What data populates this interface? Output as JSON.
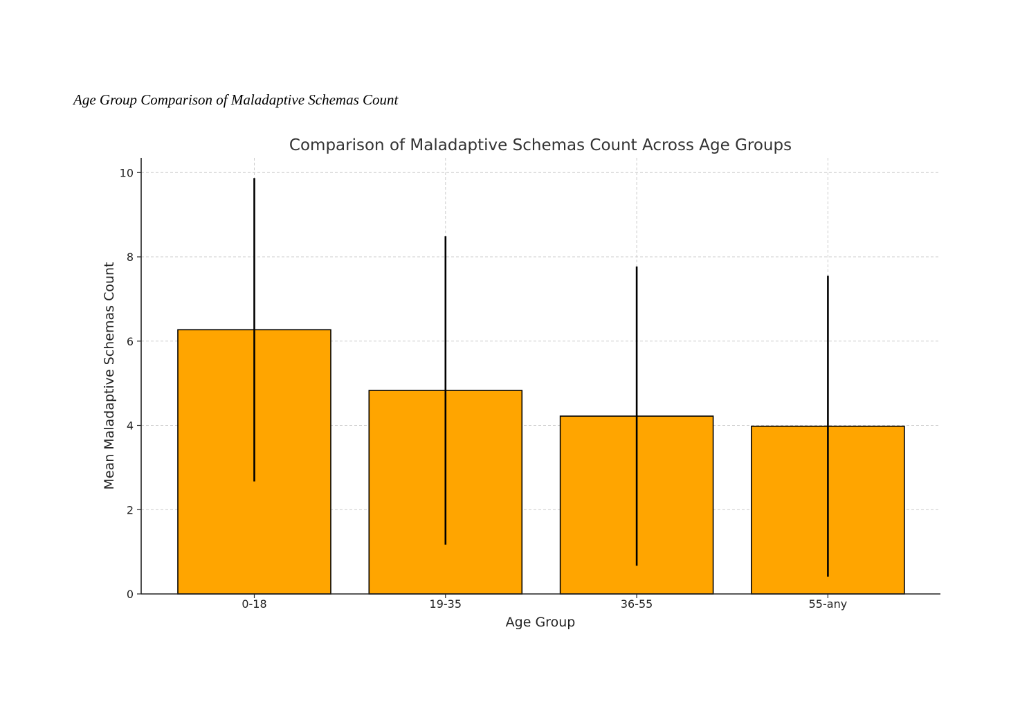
{
  "caption": "Age Group Comparison of Maladaptive Schemas Count",
  "chart_data": {
    "type": "bar",
    "title": "Comparison of Maladaptive Schemas Count Across Age Groups",
    "xlabel": "Age Group",
    "ylabel": "Mean Maladaptive Schemas Count",
    "categories": [
      "0-18",
      "19-35",
      "36-55",
      "55-any"
    ],
    "values": [
      6.27,
      4.83,
      4.22,
      3.98
    ],
    "error_bars": [
      3.6,
      3.66,
      3.55,
      3.57
    ],
    "ylim": [
      0,
      10.35
    ],
    "yticks": [
      0,
      2,
      4,
      6,
      8,
      10
    ],
    "grid": true,
    "colors": {
      "bar_fill": "#FFA500",
      "bar_edge": "#000000",
      "error_bar": "#000000",
      "grid": "#cccccc"
    }
  }
}
